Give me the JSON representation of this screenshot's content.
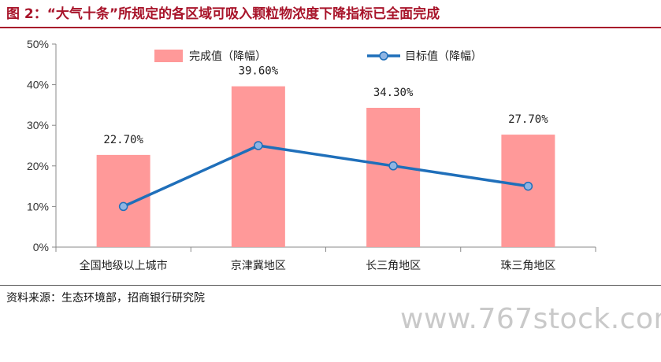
{
  "figure": {
    "title": "图 2：“大气十条”所规定的各区域可吸入颗粒物浓度下降指标已全面完成",
    "source": "资料来源：生态环境部，招商银行研究院",
    "watermark": "www.767stock.com"
  },
  "chart_data": {
    "type": "bar",
    "categories": [
      "全国地级以上城市",
      "京津冀地区",
      "长三角地区",
      "珠三角地区"
    ],
    "series": [
      {
        "name": "完成值（降幅）",
        "type": "bar",
        "values": [
          22.7,
          39.6,
          34.3,
          27.7
        ],
        "color": "#ff9999",
        "labels": [
          "22.70%",
          "39.60%",
          "34.30%",
          "27.70%"
        ]
      },
      {
        "name": "目标值（降幅）",
        "type": "line",
        "values": [
          10,
          25,
          20,
          15
        ],
        "color": "#1f6fba",
        "marker_fill": "#8eb4e3"
      }
    ],
    "yticks": [
      "0%",
      "10%",
      "20%",
      "30%",
      "40%",
      "50%"
    ],
    "ylim": [
      0,
      50
    ],
    "grid": false,
    "legend_position": "top"
  }
}
